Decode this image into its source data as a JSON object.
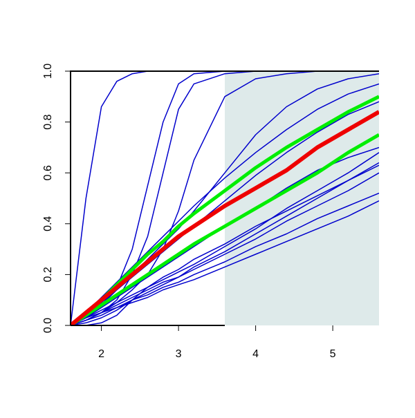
{
  "chart_data": {
    "type": "line",
    "x": [
      1.6,
      1.8,
      2.0,
      2.2,
      2.4,
      2.6,
      2.8,
      3.0,
      3.2,
      3.6,
      4.0,
      4.4,
      4.8,
      5.2,
      5.6
    ],
    "xlim": [
      1.6,
      5.6
    ],
    "xticks": [
      2,
      3,
      4,
      5
    ],
    "ylim": [
      0,
      1
    ],
    "yticks": [
      {
        "value": 0,
        "label": "0.0"
      },
      0.2,
      0.4,
      0.6,
      0.8,
      {
        "value": 1,
        "label": "1.0"
      }
    ],
    "shaded_x": [
      3.6,
      5.6
    ],
    "shaded_color": "#deeaea",
    "series": [
      {
        "color": "#0000cc",
        "width": 1.5,
        "values": [
          0,
          0.5,
          0.86,
          0.96,
          0.99,
          1,
          1,
          1,
          1,
          1,
          1,
          1,
          1,
          1,
          1
        ]
      },
      {
        "color": "#0000cc",
        "width": 1.5,
        "values": [
          0,
          0.03,
          0.08,
          0.15,
          0.3,
          0.55,
          0.8,
          0.95,
          0.99,
          1,
          1,
          1,
          1,
          1,
          1
        ]
      },
      {
        "color": "#0000cc",
        "width": 1.5,
        "values": [
          0,
          0.02,
          0.05,
          0.1,
          0.2,
          0.35,
          0.6,
          0.85,
          0.95,
          0.99,
          1,
          1,
          1,
          1,
          1
        ]
      },
      {
        "color": "#0000cc",
        "width": 1.5,
        "values": [
          0,
          0.02,
          0.05,
          0.09,
          0.14,
          0.2,
          0.3,
          0.45,
          0.65,
          0.9,
          0.97,
          0.99,
          1,
          1,
          1
        ]
      },
      {
        "color": "#0000cc",
        "width": 1.5,
        "values": [
          0,
          0.03,
          0.08,
          0.14,
          0.2,
          0.26,
          0.32,
          0.38,
          0.45,
          0.6,
          0.75,
          0.86,
          0.93,
          0.97,
          0.99
        ]
      },
      {
        "color": "#0000cc",
        "width": 1.5,
        "values": [
          0,
          0.05,
          0.11,
          0.17,
          0.23,
          0.29,
          0.35,
          0.41,
          0.47,
          0.58,
          0.68,
          0.77,
          0.85,
          0.91,
          0.95
        ]
      },
      {
        "color": "#0000cc",
        "width": 1.5,
        "values": [
          0,
          0.04,
          0.09,
          0.14,
          0.19,
          0.24,
          0.29,
          0.34,
          0.39,
          0.49,
          0.59,
          0.68,
          0.76,
          0.83,
          0.88
        ]
      },
      {
        "color": "#0000cc",
        "width": 1.5,
        "values": [
          0,
          0.03,
          0.06,
          0.09,
          0.12,
          0.15,
          0.18,
          0.21,
          0.24,
          0.31,
          0.38,
          0.46,
          0.53,
          0.6,
          0.68
        ]
      },
      {
        "color": "#0000cc",
        "width": 1.5,
        "values": [
          0,
          0.03,
          0.05,
          0.08,
          0.11,
          0.14,
          0.17,
          0.19,
          0.22,
          0.28,
          0.34,
          0.41,
          0.47,
          0.53,
          0.6
        ]
      },
      {
        "color": "#0000cc",
        "width": 1.5,
        "values": [
          0,
          0.02,
          0.05,
          0.07,
          0.1,
          0.12,
          0.15,
          0.17,
          0.2,
          0.25,
          0.31,
          0.36,
          0.42,
          0.47,
          0.52
        ]
      },
      {
        "color": "#0000cc",
        "width": 1.5,
        "values": [
          0,
          0.02,
          0.04,
          0.07,
          0.09,
          0.11,
          0.14,
          0.16,
          0.18,
          0.23,
          0.28,
          0.33,
          0.38,
          0.43,
          0.49
        ]
      },
      {
        "color": "#0000cc",
        "width": 1.5,
        "values": [
          0,
          0.01,
          0.03,
          0.06,
          0.1,
          0.13,
          0.16,
          0.19,
          0.23,
          0.29,
          0.36,
          0.43,
          0.5,
          0.57,
          0.64
        ]
      },
      {
        "color": "#0000cc",
        "width": 1.5,
        "values": [
          0,
          0,
          0.01,
          0.04,
          0.1,
          0.15,
          0.19,
          0.22,
          0.26,
          0.32,
          0.39,
          0.45,
          0.51,
          0.57,
          0.63
        ]
      },
      {
        "color": "#0000cc",
        "width": 1.5,
        "values": [
          0,
          0.03,
          0.07,
          0.11,
          0.15,
          0.19,
          0.23,
          0.27,
          0.31,
          0.39,
          0.46,
          0.54,
          0.61,
          0.66,
          0.7
        ]
      },
      {
        "color": "#00ee00",
        "width": 5,
        "values": [
          0,
          0.05,
          0.1,
          0.16,
          0.22,
          0.28,
          0.33,
          0.39,
          0.44,
          0.53,
          0.62,
          0.7,
          0.77,
          0.84,
          0.9
        ]
      },
      {
        "color": "#00ee00",
        "width": 5,
        "values": [
          0,
          0.04,
          0.08,
          0.12,
          0.16,
          0.2,
          0.24,
          0.28,
          0.32,
          0.39,
          0.46,
          0.53,
          0.6,
          0.68,
          0.75
        ]
      },
      {
        "color": "#ee0000",
        "width": 6,
        "values": [
          0,
          0.05,
          0.1,
          0.15,
          0.2,
          0.25,
          0.3,
          0.35,
          0.39,
          0.47,
          0.54,
          0.61,
          0.7,
          0.77,
          0.84
        ]
      }
    ]
  }
}
